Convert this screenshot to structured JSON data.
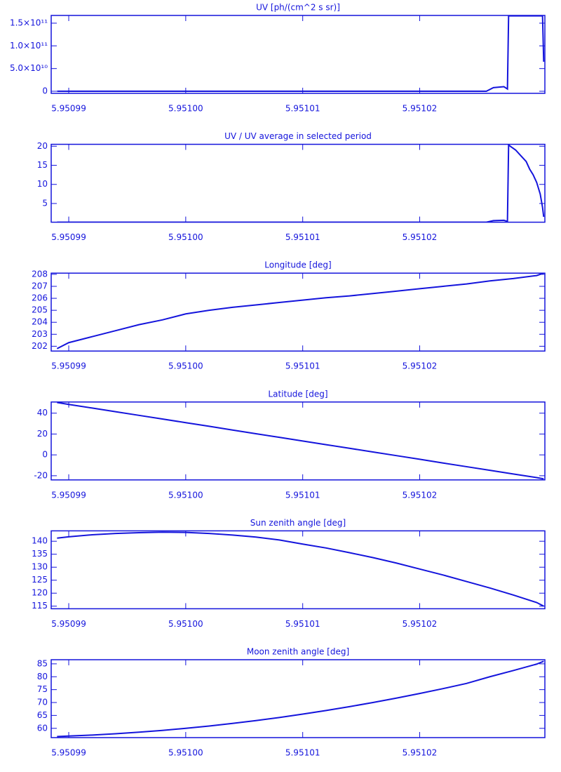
{
  "chart_data": [
    {
      "type": "line",
      "title": "UV [ph/(cm^2 s sr)]",
      "color": "#1414dc",
      "x": [
        5.950989,
        5.9510257,
        5.9510263,
        5.9510272,
        5.9510275,
        5.9510276,
        5.9510304,
        5.9510305,
        5.9510306
      ],
      "values": [
        0,
        0,
        8000000000,
        10000000000,
        5000000000,
        166000000000,
        166000000000,
        166000000000,
        65000000000
      ],
      "xlim": [
        5.9509885,
        5.9510307
      ],
      "xticks": [
        5.95099,
        {
          "value": 5.951,
          "label": "5.95100"
        },
        5.95101,
        5.95102
      ],
      "ylim": [
        -4600000000,
        167000000000
      ],
      "yticks": [
        0,
        {
          "value": 50000000000,
          "label": "5.0×10¹⁰"
        },
        {
          "value": 100000000000,
          "label": "1.0×10¹¹"
        },
        {
          "value": 150000000000,
          "label": "1.5×10¹¹"
        }
      ]
    },
    {
      "type": "line",
      "title": "UV / UV average in selected period",
      "color": "#1414dc",
      "x": [
        5.950989,
        5.9510257,
        5.9510263,
        5.9510272,
        5.9510275,
        5.9510276,
        5.9510282,
        5.9510288,
        5.9510291,
        5.9510294,
        5.9510297,
        5.95103,
        5.9510303,
        5.9510305,
        5.9510306
      ],
      "values": [
        0.1,
        0.1,
        0.5,
        0.6,
        0.3,
        20.3,
        19.0,
        17.0,
        16.0,
        14.0,
        12.5,
        10.5,
        7.5,
        4.0,
        1.5
      ],
      "xlim": [
        5.9509885,
        5.9510307
      ],
      "xticks": [
        5.95099,
        {
          "value": 5.951,
          "label": "5.95100"
        },
        5.95101,
        5.95102
      ],
      "ylim": [
        0.1,
        20.5
      ],
      "yticks": [
        5,
        10,
        15,
        20
      ]
    },
    {
      "type": "line",
      "title": "Longitude [deg]",
      "color": "#1414dc",
      "x": [
        5.950989,
        5.95099,
        5.950992,
        5.950994,
        5.950996,
        5.950998,
        5.951,
        5.951002,
        5.951004,
        5.951006,
        5.951008,
        5.95101,
        5.951012,
        5.951014,
        5.951016,
        5.951018,
        5.95102,
        5.951022,
        5.951024,
        5.951026,
        5.951028,
        5.95103,
        5.9510306
      ],
      "values": [
        201.8,
        202.3,
        202.8,
        203.3,
        203.8,
        204.2,
        204.7,
        205.0,
        205.25,
        205.45,
        205.65,
        205.85,
        206.05,
        206.2,
        206.4,
        206.6,
        206.8,
        207.0,
        207.2,
        207.45,
        207.65,
        207.9,
        208.1
      ],
      "xlim": [
        5.9509885,
        5.9510307
      ],
      "xticks": [
        5.95099,
        {
          "value": 5.951,
          "label": "5.95100"
        },
        5.95101,
        5.95102
      ],
      "ylim": [
        201.6,
        208.1
      ],
      "yticks": [
        202,
        203,
        204,
        205,
        206,
        207,
        208
      ]
    },
    {
      "type": "line",
      "title": "Latitude [deg]",
      "color": "#1414dc",
      "x": [
        5.950989,
        5.95099,
        5.950992,
        5.950994,
        5.950996,
        5.950998,
        5.951,
        5.951002,
        5.951004,
        5.951006,
        5.951008,
        5.95101,
        5.951012,
        5.951014,
        5.951016,
        5.951018,
        5.95102,
        5.951022,
        5.951024,
        5.951026,
        5.951028,
        5.95103,
        5.9510306
      ],
      "values": [
        50.2,
        48.4,
        44.9,
        41.4,
        37.9,
        34.4,
        30.9,
        27.4,
        23.8,
        20.3,
        16.8,
        13.3,
        9.8,
        6.3,
        2.8,
        -0.7,
        -4.2,
        -7.8,
        -11.3,
        -14.8,
        -18.3,
        -21.8,
        -23
      ],
      "xlim": [
        5.9509885,
        5.9510307
      ],
      "xticks": [
        5.95099,
        {
          "value": 5.951,
          "label": "5.95100"
        },
        5.95101,
        5.95102
      ],
      "ylim": [
        -24,
        50.7
      ],
      "yticks": [
        -20,
        0,
        20,
        40
      ]
    },
    {
      "type": "line",
      "title": "Sun zenith angle [deg]",
      "color": "#1414dc",
      "x": [
        5.950989,
        5.95099,
        5.950992,
        5.950994,
        5.950996,
        5.950998,
        5.951,
        5.951002,
        5.951004,
        5.951006,
        5.951008,
        5.95101,
        5.951012,
        5.951014,
        5.951016,
        5.951018,
        5.95102,
        5.951022,
        5.951024,
        5.951026,
        5.951028,
        5.95103,
        5.9510306
      ],
      "values": [
        141.2,
        141.7,
        142.5,
        143.0,
        143.3,
        143.5,
        143.4,
        143.0,
        142.4,
        141.6,
        140.5,
        138.9,
        137.4,
        135.6,
        133.7,
        131.6,
        129.3,
        127.0,
        124.5,
        122.0,
        119.3,
        116.4,
        115
      ],
      "xlim": [
        5.9509885,
        5.9510307
      ],
      "xticks": [
        5.95099,
        {
          "value": 5.951,
          "label": "5.95100"
        },
        5.95101,
        5.95102
      ],
      "ylim": [
        114,
        144
      ],
      "yticks": [
        115,
        120,
        125,
        130,
        135,
        140
      ]
    },
    {
      "type": "line",
      "title": "Moon zenith angle [deg]",
      "color": "#1414dc",
      "x": [
        5.950989,
        5.95099,
        5.950992,
        5.950994,
        5.950996,
        5.950998,
        5.951,
        5.951002,
        5.951004,
        5.951006,
        5.951008,
        5.95101,
        5.951012,
        5.951014,
        5.951016,
        5.951018,
        5.95102,
        5.951022,
        5.951024,
        5.951026,
        5.951028,
        5.95103,
        5.9510306
      ],
      "values": [
        56.8,
        57.0,
        57.4,
        57.9,
        58.5,
        59.2,
        60.0,
        60.9,
        61.9,
        63.0,
        64.2,
        65.5,
        66.9,
        68.4,
        70.0,
        71.7,
        73.5,
        75.4,
        77.4,
        80.0,
        82.4,
        84.9,
        86.0
      ],
      "xlim": [
        5.9509885,
        5.9510307
      ],
      "xticks": [
        5.95099,
        {
          "value": 5.951,
          "label": "5.95100"
        },
        5.95101,
        5.95102
      ],
      "ylim": [
        56.4,
        86.6
      ],
      "yticks": [
        60,
        65,
        70,
        75,
        80,
        85
      ]
    }
  ]
}
